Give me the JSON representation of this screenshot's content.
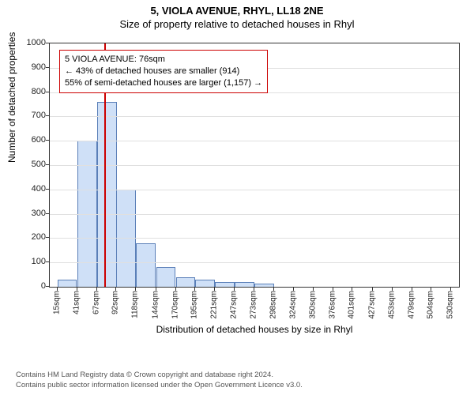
{
  "header": {
    "address": "5, VIOLA AVENUE, RHYL, LL18 2NE",
    "subtitle": "Size of property relative to detached houses in Rhyl"
  },
  "chart": {
    "type": "histogram",
    "ylabel": "Number of detached properties",
    "xlabel": "Distribution of detached houses by size in Rhyl",
    "ylim": [
      0,
      1000
    ],
    "ytick_step": 100,
    "xtick_labels": [
      "15sqm",
      "41sqm",
      "67sqm",
      "92sqm",
      "118sqm",
      "144sqm",
      "170sqm",
      "195sqm",
      "221sqm",
      "247sqm",
      "273sqm",
      "298sqm",
      "324sqm",
      "350sqm",
      "376sqm",
      "401sqm",
      "427sqm",
      "453sqm",
      "479sqm",
      "504sqm",
      "530sqm"
    ],
    "xtick_positions": [
      15,
      41,
      67,
      92,
      118,
      144,
      170,
      195,
      221,
      247,
      273,
      298,
      324,
      350,
      376,
      401,
      427,
      453,
      479,
      504,
      530
    ],
    "x_domain": [
      5,
      540
    ],
    "bars": {
      "width_data": 25.5,
      "x_starts": [
        15,
        41,
        67,
        92,
        118,
        144,
        170,
        195,
        221,
        247,
        273
      ],
      "heights": [
        30,
        600,
        760,
        400,
        180,
        80,
        40,
        30,
        20,
        18,
        12
      ]
    },
    "bar_fill": "#cfe0f7",
    "bar_stroke": "#5a7fb8",
    "grid_color": "#e0e0e0",
    "border_color": "#333333",
    "reference_line": {
      "x": 76,
      "color": "#cc0000"
    },
    "annotation": {
      "line1": "5 VIOLA AVENUE: 76sqm",
      "line2": "← 43% of detached houses are smaller (914)",
      "line3": "55% of semi-detached houses are larger (1,157) →",
      "border_color": "#cc0000"
    }
  },
  "footer": {
    "line1": "Contains HM Land Registry data © Crown copyright and database right 2024.",
    "line2": "Contains public sector information licensed under the Open Government Licence v3.0."
  }
}
